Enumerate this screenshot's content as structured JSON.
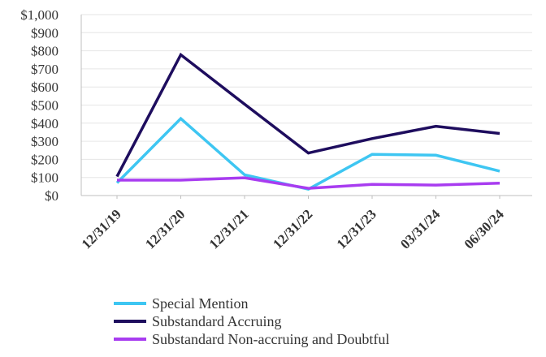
{
  "chart_data": {
    "type": "line",
    "title": "",
    "xlabel": "",
    "ylabel": "",
    "categories": [
      "12/31/19",
      "12/31/20",
      "12/31/21",
      "12/31/22",
      "12/31/23",
      "03/31/24",
      "06/30/24"
    ],
    "y_ticks": [
      "$0",
      "$100",
      "$200",
      "$300",
      "$400",
      "$500",
      "$600",
      "$700",
      "$800",
      "$900",
      "$1,000"
    ],
    "ylim": [
      0,
      1000
    ],
    "grid": true,
    "legend_position": "bottom",
    "series": [
      {
        "name": "Special Mention",
        "color": "#3ec6f2",
        "values": [
          70,
          425,
          115,
          35,
          228,
          223,
          135
        ]
      },
      {
        "name": "Substandard Accruing",
        "color": "#1e0d5e",
        "values": [
          105,
          778,
          505,
          235,
          315,
          383,
          343
        ]
      },
      {
        "name": "Substandard Non-accruing and Doubtful",
        "color": "#a83cf0",
        "values": [
          85,
          85,
          98,
          40,
          62,
          58,
          68
        ]
      }
    ]
  }
}
